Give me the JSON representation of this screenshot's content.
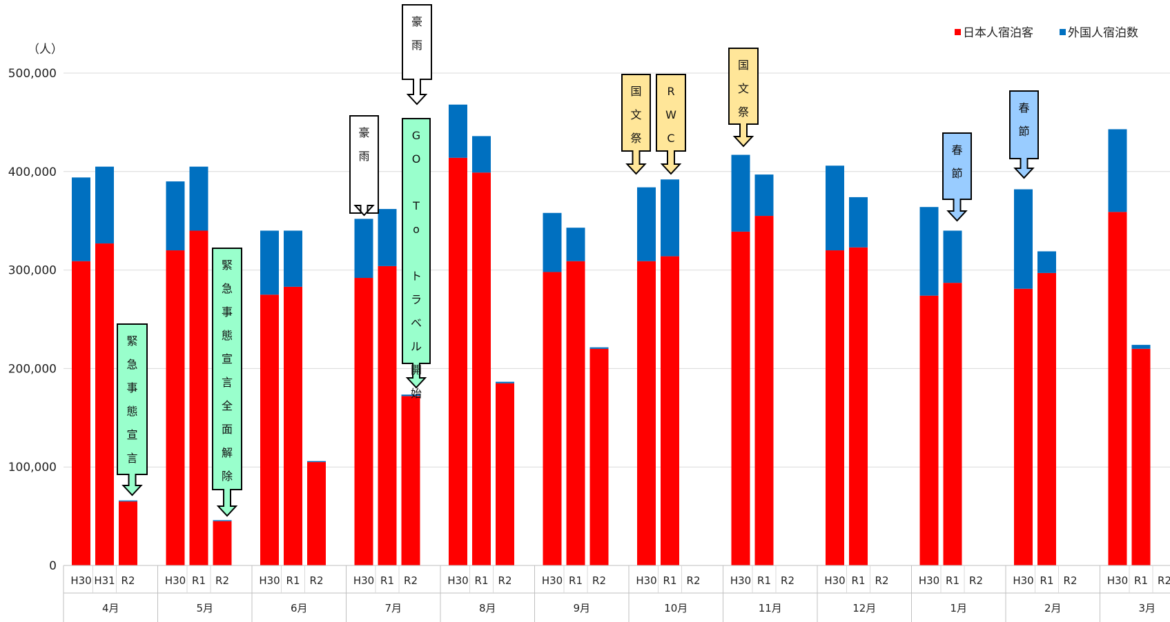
{
  "chart_data": {
    "type": "bar",
    "stacked": true,
    "unit_label": "（人）",
    "ylim": [
      0,
      500000
    ],
    "yticks": [
      "0",
      "100,000",
      "200,000",
      "300,000",
      "400,000",
      "500,000"
    ],
    "ytick_values": [
      0,
      100000,
      200000,
      300000,
      400000,
      500000
    ],
    "grid": true,
    "legend_position": "top-right",
    "series": [
      {
        "name": "日本人宿泊客",
        "color": "#ff0000"
      },
      {
        "name": "外国人宿泊数",
        "color": "#0070c0"
      }
    ],
    "groups": [
      {
        "month": "4月",
        "bars": [
          {
            "label": "H30",
            "japanese": 309000,
            "foreign": 85000
          },
          {
            "label": "H31",
            "japanese": 327000,
            "foreign": 78000
          },
          {
            "label": "R2",
            "japanese": 65000,
            "foreign": 1000
          }
        ]
      },
      {
        "month": "5月",
        "bars": [
          {
            "label": "H30",
            "japanese": 320000,
            "foreign": 70000
          },
          {
            "label": "R1",
            "japanese": 340000,
            "foreign": 65000
          },
          {
            "label": "R2",
            "japanese": 45000,
            "foreign": 1000
          }
        ]
      },
      {
        "month": "6月",
        "bars": [
          {
            "label": "H30",
            "japanese": 275000,
            "foreign": 65000
          },
          {
            "label": "R1",
            "japanese": 283000,
            "foreign": 57000
          },
          {
            "label": "R2",
            "japanese": 105000,
            "foreign": 1000
          }
        ]
      },
      {
        "month": "7月",
        "bars": [
          {
            "label": "H30",
            "japanese": 292000,
            "foreign": 60000
          },
          {
            "label": "R1",
            "japanese": 304000,
            "foreign": 58000
          },
          {
            "label": "R2",
            "japanese": 172000,
            "foreign": 1500
          }
        ]
      },
      {
        "month": "8月",
        "bars": [
          {
            "label": "H30",
            "japanese": 414000,
            "foreign": 54000
          },
          {
            "label": "R1",
            "japanese": 399000,
            "foreign": 37000
          },
          {
            "label": "R2",
            "japanese": 185000,
            "foreign": 1500
          }
        ]
      },
      {
        "month": "9月",
        "bars": [
          {
            "label": "H30",
            "japanese": 298000,
            "foreign": 60000
          },
          {
            "label": "R1",
            "japanese": 309000,
            "foreign": 34000
          },
          {
            "label": "R2",
            "japanese": 220000,
            "foreign": 1500
          }
        ]
      },
      {
        "month": "10月",
        "bars": [
          {
            "label": "H30",
            "japanese": 309000,
            "foreign": 75000
          },
          {
            "label": "R1",
            "japanese": 314000,
            "foreign": 78000
          },
          {
            "label": "R2",
            "japanese": 0,
            "foreign": 0
          }
        ]
      },
      {
        "month": "11月",
        "bars": [
          {
            "label": "H30",
            "japanese": 339000,
            "foreign": 78000
          },
          {
            "label": "R1",
            "japanese": 355000,
            "foreign": 42000
          },
          {
            "label": "R2",
            "japanese": 0,
            "foreign": 0
          }
        ]
      },
      {
        "month": "12月",
        "bars": [
          {
            "label": "H30",
            "japanese": 320000,
            "foreign": 86000
          },
          {
            "label": "R1",
            "japanese": 323000,
            "foreign": 51000
          },
          {
            "label": "R2",
            "japanese": 0,
            "foreign": 0
          }
        ]
      },
      {
        "month": "1月",
        "bars": [
          {
            "label": "H30",
            "japanese": 274000,
            "foreign": 90000
          },
          {
            "label": "R1",
            "japanese": 287000,
            "foreign": 53000
          },
          {
            "label": "R2",
            "japanese": 0,
            "foreign": 0
          }
        ]
      },
      {
        "month": "2月",
        "bars": [
          {
            "label": "H30",
            "japanese": 281000,
            "foreign": 101000
          },
          {
            "label": "R1",
            "japanese": 297000,
            "foreign": 22000
          },
          {
            "label": "R2",
            "japanese": 0,
            "foreign": 0
          }
        ]
      },
      {
        "month": "3月",
        "bars": [
          {
            "label": "H30",
            "japanese": 359000,
            "foreign": 84000
          },
          {
            "label": "R1",
            "japanese": 220000,
            "foreign": 4000
          },
          {
            "label": "R2",
            "japanese": 0,
            "foreign": 0
          }
        ]
      }
    ],
    "annotations": [
      {
        "text": "緊急事態宣言",
        "month": "4月",
        "bar": "R2",
        "fill": "#99ffcc"
      },
      {
        "text": "緊急事態宣言全面解除",
        "month": "5月",
        "bar": "R2",
        "fill": "#99ffcc"
      },
      {
        "text": "豪雨",
        "month": "7月",
        "bar": "H30",
        "fill": "#ffffff"
      },
      {
        "text": "豪雨",
        "month": "7月",
        "bar": "R2",
        "fill": "#ffffff"
      },
      {
        "text": "GO To トラベル開始",
        "month": "7月",
        "bar": "R2",
        "fill": "#99ffcc"
      },
      {
        "text": "国文祭",
        "month": "10月",
        "bar": "H30",
        "fill": "#ffe699"
      },
      {
        "text": "RWC",
        "month": "10月",
        "bar": "R1",
        "fill": "#ffe699"
      },
      {
        "text": "国文祭",
        "month": "11月",
        "bar": "H30",
        "fill": "#ffe699"
      },
      {
        "text": "春節",
        "month": "1月",
        "bar": "R1",
        "fill": "#99ccff"
      },
      {
        "text": "春節",
        "month": "2月",
        "bar": "H30",
        "fill": "#99ccff"
      }
    ]
  }
}
